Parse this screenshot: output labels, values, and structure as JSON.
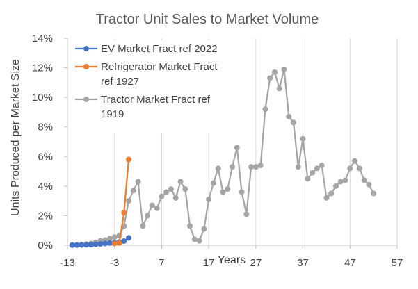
{
  "chart_data": {
    "type": "line",
    "title": "Tractor Unit Sales to Market Volume",
    "xlabel": "Years",
    "ylabel": "Units Produced per Market Size",
    "xlim": [
      -13,
      57
    ],
    "ylim": [
      0,
      0.14
    ],
    "x_ticks": [
      -13,
      -3,
      7,
      17,
      27,
      37,
      47,
      57
    ],
    "x_tick_labels": [
      "-13",
      "-3",
      "7",
      "17",
      "27",
      "37",
      "47",
      "57"
    ],
    "y_ticks": [
      0,
      0.02,
      0.04,
      0.06,
      0.08,
      0.1,
      0.12,
      0.14
    ],
    "y_tick_labels": [
      "0%",
      "2%",
      "4%",
      "6%",
      "8%",
      "10%",
      "12%",
      "14%"
    ],
    "grid": "vertical",
    "legend_position": "top-left",
    "series": [
      {
        "name": "Tractor Market Fract ref 1919",
        "legend_lines": [
          "Tractor Market Fract ref",
          "1919"
        ],
        "color": "#a5a5a5",
        "x": [
          -12,
          -11,
          -10,
          -9,
          -8,
          -7,
          -6,
          -5,
          -4,
          -3,
          -2,
          -1,
          0,
          1,
          2,
          3,
          4,
          5,
          6,
          7,
          8,
          9,
          10,
          11,
          12,
          13,
          14,
          15,
          16,
          17,
          18,
          19,
          20,
          21,
          22,
          23,
          24,
          25,
          26,
          27,
          28,
          29,
          30,
          31,
          32,
          33,
          34,
          35,
          36,
          37,
          38,
          39,
          40,
          41,
          42,
          43,
          44,
          45,
          46,
          47,
          48,
          49,
          50,
          51,
          52
        ],
        "y": [
          0.0002,
          0.0003,
          0.0005,
          0.0008,
          0.0012,
          0.002,
          0.003,
          0.0035,
          0.0045,
          0.0055,
          0.0065,
          0.013,
          0.03,
          0.037,
          0.043,
          0.013,
          0.02,
          0.027,
          0.025,
          0.033,
          0.036,
          0.038,
          0.032,
          0.043,
          0.038,
          0.013,
          0.004,
          0.003,
          0.011,
          0.031,
          0.042,
          0.052,
          0.036,
          0.038,
          0.053,
          0.066,
          0.036,
          0.021,
          0.053,
          0.053,
          0.054,
          0.092,
          0.113,
          0.117,
          0.106,
          0.119,
          0.087,
          0.083,
          0.053,
          0.072,
          0.045,
          0.049,
          0.052,
          0.054,
          0.032,
          0.035,
          0.04,
          0.043,
          0.044,
          0.052,
          0.057,
          0.052,
          0.044,
          0.041,
          0.035
        ]
      },
      {
        "name": "EV Market Fract ref 2022",
        "legend_lines": [
          "EV Market Fract ref 2022"
        ],
        "color": "#4472c4",
        "x": [
          -12,
          -11,
          -10,
          -9,
          -8,
          -7,
          -6,
          -5,
          -4,
          -3,
          -2,
          -1,
          0
        ],
        "y": [
          0.0001,
          0.0001,
          0.0002,
          0.0003,
          0.0004,
          0.0006,
          0.0009,
          0.0012,
          0.0015,
          0.0018,
          0.0022,
          0.0028,
          0.005
        ]
      },
      {
        "name": "Refrigerator Market Fract ref 1927",
        "legend_lines": [
          "Refrigerator Market Fract",
          "ref 1927"
        ],
        "color": "#ed7d31",
        "x": [
          -3,
          -2,
          -1,
          0
        ],
        "y": [
          0.0012,
          0.0015,
          0.022,
          0.058
        ]
      }
    ],
    "legend_order": [
      1,
      2,
      0
    ]
  }
}
